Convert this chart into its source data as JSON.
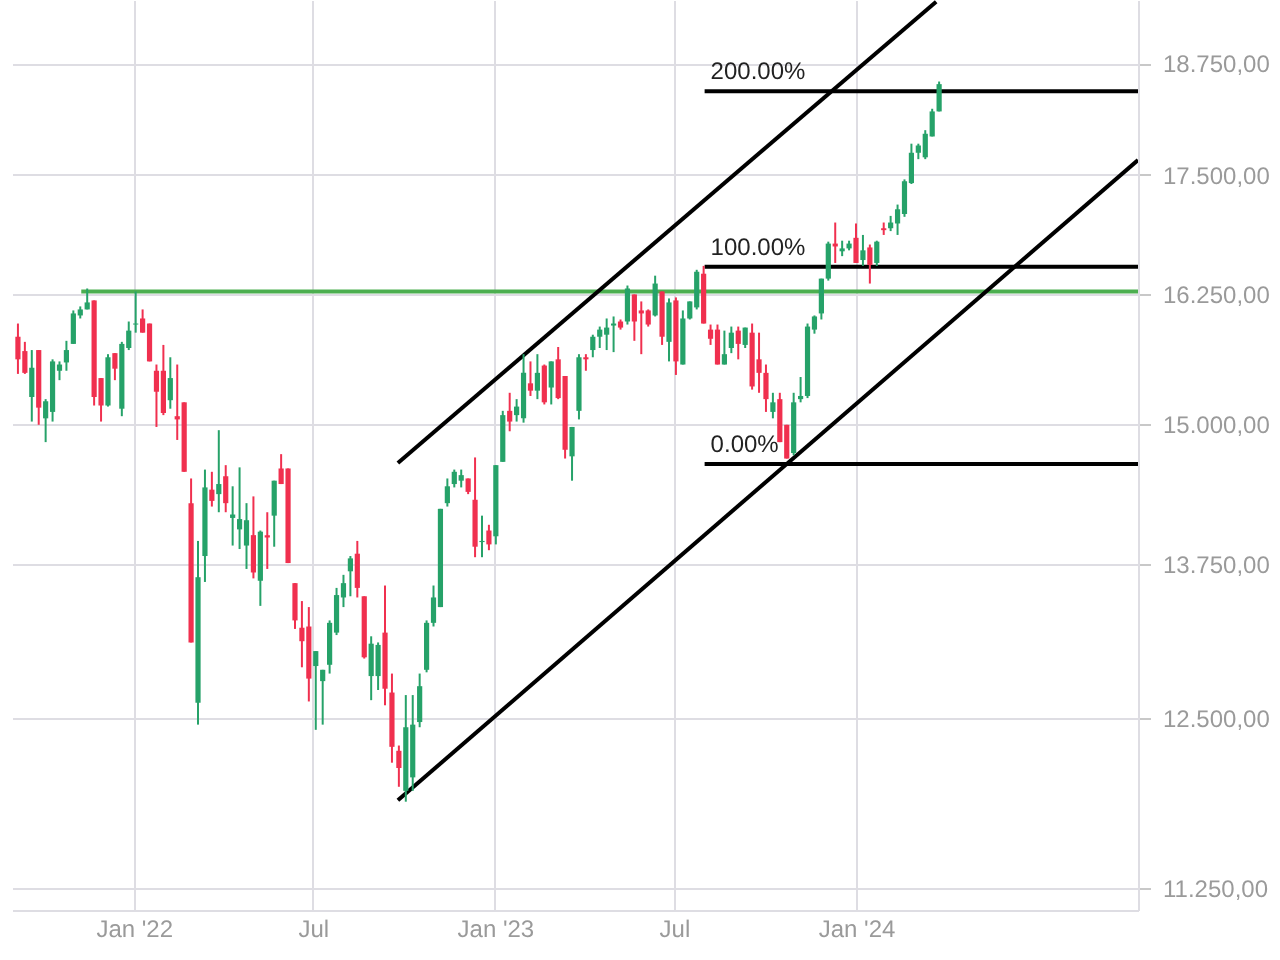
{
  "chart_data": {
    "type": "candlestick",
    "x": [
      "2021-09-06",
      "2021-09-13",
      "2021-09-20",
      "2021-09-27",
      "2021-10-04",
      "2021-10-11",
      "2021-10-18",
      "2021-10-25",
      "2021-11-01",
      "2021-11-08",
      "2021-11-15",
      "2021-11-22",
      "2021-11-29",
      "2021-12-06",
      "2021-12-13",
      "2021-12-20",
      "2021-12-27",
      "2022-01-03",
      "2022-01-10",
      "2022-01-17",
      "2022-01-24",
      "2022-01-31",
      "2022-02-07",
      "2022-02-14",
      "2022-02-21",
      "2022-02-28",
      "2022-03-07",
      "2022-03-14",
      "2022-03-21",
      "2022-03-28",
      "2022-04-04",
      "2022-04-11",
      "2022-04-18",
      "2022-04-25",
      "2022-05-02",
      "2022-05-09",
      "2022-05-16",
      "2022-05-23",
      "2022-05-30",
      "2022-06-06",
      "2022-06-13",
      "2022-06-20",
      "2022-06-27",
      "2022-07-04",
      "2022-07-11",
      "2022-07-18",
      "2022-07-25",
      "2022-08-01",
      "2022-08-08",
      "2022-08-15",
      "2022-08-22",
      "2022-08-29",
      "2022-09-05",
      "2022-09-12",
      "2022-09-19",
      "2022-09-26",
      "2022-10-03",
      "2022-10-10",
      "2022-10-17",
      "2022-10-24",
      "2022-10-31",
      "2022-11-07",
      "2022-11-14",
      "2022-11-21",
      "2022-11-28",
      "2022-12-05",
      "2022-12-12",
      "2022-12-19",
      "2022-12-26",
      "2023-01-02",
      "2023-01-09",
      "2023-01-16",
      "2023-01-23",
      "2023-01-30",
      "2023-02-06",
      "2023-02-13",
      "2023-02-20",
      "2023-02-27",
      "2023-03-06",
      "2023-03-13",
      "2023-03-20",
      "2023-03-27",
      "2023-04-03",
      "2023-04-10",
      "2023-04-17",
      "2023-04-24",
      "2023-05-01",
      "2023-05-08",
      "2023-05-15",
      "2023-05-22",
      "2023-05-29",
      "2023-06-05",
      "2023-06-12",
      "2023-06-19",
      "2023-06-26",
      "2023-07-03",
      "2023-07-10",
      "2023-07-17",
      "2023-07-24",
      "2023-07-31",
      "2023-08-07",
      "2023-08-14",
      "2023-08-21",
      "2023-08-28",
      "2023-09-04",
      "2023-09-11",
      "2023-09-18",
      "2023-09-25",
      "2023-10-02",
      "2023-10-09",
      "2023-10-16",
      "2023-10-23",
      "2023-10-30",
      "2023-11-06",
      "2023-11-13",
      "2023-11-20",
      "2023-11-27",
      "2023-12-04",
      "2023-12-11",
      "2023-12-18",
      "2023-12-25",
      "2024-01-01",
      "2024-01-08",
      "2024-01-15",
      "2024-01-22",
      "2024-01-29",
      "2024-02-05",
      "2024-02-12",
      "2024-02-19",
      "2024-02-26",
      "2024-03-04",
      "2024-03-11",
      "2024-03-18",
      "2024-03-25"
    ],
    "ohlc": [
      [
        15830,
        15960,
        15470,
        15610
      ],
      [
        15690,
        15780,
        15470,
        15480
      ],
      [
        15250,
        15700,
        15020,
        15530
      ],
      [
        15700,
        15700,
        14990,
        15150
      ],
      [
        15050,
        15230,
        14830,
        15210
      ],
      [
        15110,
        15610,
        15020,
        15590
      ],
      [
        15500,
        15590,
        15410,
        15560
      ],
      [
        15580,
        15790,
        15500,
        15700
      ],
      [
        15760,
        16090,
        15760,
        16060
      ],
      [
        16040,
        16130,
        16010,
        16100
      ],
      [
        16100,
        16310,
        16100,
        16170
      ],
      [
        16190,
        16190,
        15170,
        15250
      ],
      [
        15430,
        15430,
        15020,
        15170
      ],
      [
        15170,
        15660,
        15160,
        15630
      ],
      [
        15670,
        15670,
        15410,
        15520
      ],
      [
        15140,
        15780,
        15070,
        15760
      ],
      [
        15720,
        15980,
        15700,
        15890
      ],
      [
        15950,
        16280,
        15870,
        15960
      ],
      [
        16010,
        16100,
        15870,
        15870
      ],
      [
        15960,
        15960,
        15590,
        15590
      ],
      [
        15500,
        15560,
        14970,
        15300
      ],
      [
        15500,
        15750,
        15080,
        15100
      ],
      [
        15220,
        15630,
        15140,
        15430
      ],
      [
        15070,
        15560,
        14850,
        15040
      ],
      [
        15200,
        15200,
        14560,
        14560
      ],
      [
        14280,
        14500,
        13100,
        13100
      ],
      [
        12620,
        13950,
        12450,
        13640
      ],
      [
        13820,
        14580,
        13600,
        14420
      ],
      [
        14400,
        14560,
        14250,
        14300
      ],
      [
        14360,
        14940,
        14200,
        14450
      ],
      [
        14520,
        14620,
        14200,
        14280
      ],
      [
        14150,
        14430,
        13910,
        14180
      ],
      [
        14050,
        14600,
        13880,
        14140
      ],
      [
        13910,
        14280,
        13710,
        14130
      ],
      [
        14000,
        14340,
        13630,
        13680
      ],
      [
        13610,
        14040,
        13400,
        14030
      ],
      [
        14000,
        14200,
        13710,
        13980
      ],
      [
        14170,
        14480,
        13900,
        14480
      ],
      [
        14590,
        14720,
        14450,
        14450
      ],
      [
        14590,
        14590,
        13760,
        13760
      ],
      [
        13590,
        13590,
        13210,
        13280
      ],
      [
        13220,
        13440,
        12900,
        13110
      ],
      [
        13230,
        13390,
        12630,
        12810
      ],
      [
        12910,
        13030,
        12410,
        13030
      ],
      [
        12790,
        12880,
        12450,
        12880
      ],
      [
        12920,
        13280,
        12850,
        13260
      ],
      [
        13180,
        13550,
        13160,
        13490
      ],
      [
        13470,
        13660,
        13390,
        13590
      ],
      [
        13690,
        13820,
        13480,
        13800
      ],
      [
        13840,
        13950,
        13470,
        13550
      ],
      [
        13480,
        13480,
        12970,
        12980
      ],
      [
        12830,
        13150,
        12640,
        13090
      ],
      [
        12830,
        13100,
        12720,
        13080
      ],
      [
        13180,
        13570,
        12600,
        12730
      ],
      [
        12700,
        12850,
        12160,
        12280
      ],
      [
        12250,
        12290,
        11980,
        12120
      ],
      [
        11950,
        12680,
        11870,
        12430
      ],
      [
        12050,
        12680,
        11950,
        12450
      ],
      [
        12470,
        12850,
        12430,
        12750
      ],
      [
        12880,
        13280,
        12860,
        13260
      ],
      [
        13260,
        13570,
        13230,
        13470
      ],
      [
        13390,
        14230,
        13390,
        14230
      ],
      [
        14280,
        14500,
        14250,
        14430
      ],
      [
        14450,
        14580,
        14420,
        14560
      ],
      [
        14480,
        14580,
        14420,
        14530
      ],
      [
        14500,
        14500,
        14360,
        14380
      ],
      [
        14310,
        14690,
        13810,
        13900
      ],
      [
        13940,
        14170,
        13810,
        13950
      ],
      [
        14040,
        14090,
        13870,
        13920
      ],
      [
        13990,
        14620,
        13920,
        14620
      ],
      [
        14650,
        15120,
        14650,
        15080
      ],
      [
        15120,
        15290,
        14930,
        15020
      ],
      [
        15080,
        15230,
        15020,
        15160
      ],
      [
        15050,
        15660,
        15010,
        15480
      ],
      [
        15380,
        15590,
        15260,
        15310
      ],
      [
        15310,
        15660,
        15230,
        15480
      ],
      [
        15550,
        15560,
        15180,
        15200
      ],
      [
        15340,
        15590,
        15180,
        15590
      ],
      [
        15610,
        15730,
        15230,
        15240
      ],
      [
        15450,
        15450,
        14680,
        14760
      ],
      [
        14700,
        14970,
        14480,
        14970
      ],
      [
        15120,
        15660,
        15040,
        15630
      ],
      [
        15630,
        15660,
        15500,
        15610
      ],
      [
        15700,
        15850,
        15630,
        15830
      ],
      [
        15830,
        15930,
        15720,
        15900
      ],
      [
        15850,
        16010,
        15700,
        15920
      ],
      [
        15940,
        16030,
        15680,
        15960
      ],
      [
        15980,
        16000,
        15900,
        15920
      ],
      [
        15980,
        16340,
        15950,
        16310
      ],
      [
        16250,
        16250,
        15790,
        15980
      ],
      [
        16090,
        16180,
        15660,
        16060
      ],
      [
        16090,
        16100,
        15930,
        15950
      ],
      [
        16040,
        16440,
        16030,
        16360
      ],
      [
        16280,
        16280,
        15750,
        15830
      ],
      [
        15780,
        16210,
        15590,
        16170
      ],
      [
        16190,
        16220,
        15460,
        15590
      ],
      [
        15560,
        16090,
        15560,
        16010
      ],
      [
        16010,
        16180,
        16000,
        16180
      ],
      [
        16120,
        16500,
        16100,
        16480
      ],
      [
        16460,
        16540,
        15960,
        15960
      ],
      [
        15900,
        15950,
        15750,
        15810
      ],
      [
        15900,
        15950,
        15560,
        15560
      ],
      [
        15560,
        15890,
        15560,
        15660
      ],
      [
        15720,
        15930,
        15670,
        15870
      ],
      [
        15890,
        15930,
        15610,
        15760
      ],
      [
        15750,
        15920,
        15720,
        15920
      ],
      [
        15870,
        15960,
        15320,
        15350
      ],
      [
        15610,
        15870,
        15290,
        15480
      ],
      [
        15480,
        15560,
        15110,
        15230
      ],
      [
        15110,
        15290,
        15050,
        15200
      ],
      [
        15230,
        15290,
        14830,
        14830
      ],
      [
        14990,
        14990,
        14680,
        14680
      ],
      [
        14730,
        15290,
        14710,
        15200
      ],
      [
        15230,
        15440,
        15200,
        15260
      ],
      [
        15260,
        15960,
        15240,
        15930
      ],
      [
        15900,
        16040,
        15860,
        16030
      ],
      [
        16060,
        16410,
        16000,
        16410
      ],
      [
        16410,
        16790,
        16390,
        16770
      ],
      [
        16770,
        16990,
        16570,
        16740
      ],
      [
        16690,
        16800,
        16640,
        16720
      ],
      [
        16720,
        16800,
        16700,
        16770
      ],
      [
        16830,
        16980,
        16570,
        16570
      ],
      [
        16600,
        16860,
        16540,
        16700
      ],
      [
        16730,
        16760,
        16360,
        16550
      ],
      [
        16570,
        16800,
        16540,
        16790
      ],
      [
        16930,
        16990,
        16860,
        16910
      ],
      [
        16930,
        17060,
        16900,
        16990
      ],
      [
        16980,
        17180,
        16860,
        17130
      ],
      [
        17080,
        17450,
        17050,
        17430
      ],
      [
        17410,
        17840,
        17400,
        17740
      ],
      [
        17740,
        17840,
        17670,
        17820
      ],
      [
        17690,
        17990,
        17670,
        17950
      ],
      [
        17920,
        18230,
        17920,
        18200
      ],
      [
        18200,
        18540,
        18200,
        18510
      ]
    ],
    "colors": [
      "#f0304f",
      "#f0304f",
      "#26a269",
      "#f0304f",
      "#26a269",
      "#26a269",
      "#26a269",
      "#26a269",
      "#26a269",
      "#26a269",
      "#26a269",
      "#f0304f",
      "#f0304f",
      "#26a269",
      "#f0304f",
      "#26a269",
      "#26a269",
      "#26a269",
      "#f0304f",
      "#f0304f",
      "#f0304f",
      "#f0304f",
      "#26a269",
      "#f0304f",
      "#f0304f",
      "#f0304f",
      "#26a269",
      "#26a269",
      "#f0304f",
      "#26a269",
      "#f0304f",
      "#26a269",
      "#26a269",
      "#26a269",
      "#f0304f",
      "#26a269",
      "#f0304f",
      "#26a269",
      "#f0304f",
      "#f0304f",
      "#f0304f",
      "#f0304f",
      "#f0304f",
      "#26a269",
      "#26a269",
      "#26a269",
      "#26a269",
      "#26a269",
      "#26a269",
      "#f0304f",
      "#f0304f",
      "#26a269",
      "#26a269",
      "#f0304f",
      "#f0304f",
      "#f0304f",
      "#26a269",
      "#26a269",
      "#26a269",
      "#26a269",
      "#26a269",
      "#26a269",
      "#26a269",
      "#26a269",
      "#26a269",
      "#f0304f",
      "#f0304f",
      "#26a269",
      "#f0304f",
      "#26a269",
      "#26a269",
      "#f0304f",
      "#26a269",
      "#26a269",
      "#f0304f",
      "#26a269",
      "#f0304f",
      "#26a269",
      "#f0304f",
      "#f0304f",
      "#26a269",
      "#26a269",
      "#f0304f",
      "#26a269",
      "#26a269",
      "#26a269",
      "#26a269",
      "#f0304f",
      "#26a269",
      "#f0304f",
      "#f0304f",
      "#f0304f",
      "#26a269",
      "#f0304f",
      "#26a269",
      "#f0304f",
      "#26a269",
      "#26a269",
      "#26a269",
      "#f0304f",
      "#f0304f",
      "#f0304f",
      "#26a269",
      "#26a269",
      "#f0304f",
      "#26a269",
      "#f0304f",
      "#f0304f",
      "#f0304f",
      "#26a269",
      "#f0304f",
      "#f0304f",
      "#26a269",
      "#26a269",
      "#26a269",
      "#26a269",
      "#26a269",
      "#26a269",
      "#f0304f",
      "#26a269",
      "#26a269",
      "#f0304f",
      "#26a269",
      "#f0304f",
      "#26a269",
      "#f0304f",
      "#26a269",
      "#26a269",
      "#26a269",
      "#26a269",
      "#26a269",
      "#26a269",
      "#26a269",
      "#26a269"
    ],
    "series": [
      {
        "type": "line",
        "x": [
          "2021-11-09",
          "2024-10-12"
        ],
        "values": [
          16280,
          16280
        ],
        "color": "#4caf50"
      },
      {
        "type": "line",
        "name": "200.00%",
        "x": [
          "2023-08-01",
          "2024-10-12"
        ],
        "values": [
          18430,
          18430
        ],
        "color": "#000000"
      },
      {
        "type": "line",
        "name": "100.00%",
        "x": [
          "2023-08-01",
          "2024-10-12"
        ],
        "values": [
          16530,
          16530
        ],
        "color": "#000000"
      },
      {
        "type": "line",
        "name": "0.00%",
        "x": [
          "2023-08-01",
          "2024-10-12"
        ],
        "values": [
          14630,
          14630
        ],
        "color": "#000000"
      },
      {
        "type": "line",
        "x": [
          "2022-09-25",
          "2024-03-22"
        ],
        "values": [
          14640,
          19480
        ],
        "color": "#000000"
      },
      {
        "type": "line",
        "x": [
          "2022-09-25",
          "2024-10-12"
        ],
        "values": [
          11880,
          17660
        ],
        "color": "#000000"
      }
    ],
    "xlim": [
      "2021-08-31",
      "2024-10-12"
    ],
    "xticks": [
      {
        "value": "2022-01-01",
        "label": "Jan '22"
      },
      {
        "value": "2022-07-01",
        "label": "Jul"
      },
      {
        "value": "2023-01-01",
        "label": "Jan '23"
      },
      {
        "value": "2023-07-01",
        "label": "Jul"
      },
      {
        "value": "2024-01-01",
        "label": "Jan '24"
      }
    ],
    "ylim": [
      11100,
      19500
    ],
    "yticks": [
      {
        "value": 11250,
        "label": "11.250,00"
      },
      {
        "value": 12500,
        "label": "12.500,00"
      },
      {
        "value": 13750,
        "label": "13.750,00"
      },
      {
        "value": 15000,
        "label": "15.000,00"
      },
      {
        "value": 16250,
        "label": "16.250,00"
      },
      {
        "value": 17500,
        "label": "17.500,00"
      },
      {
        "value": 18750,
        "label": "18.750,00"
      }
    ],
    "log": true,
    "grid": true
  }
}
